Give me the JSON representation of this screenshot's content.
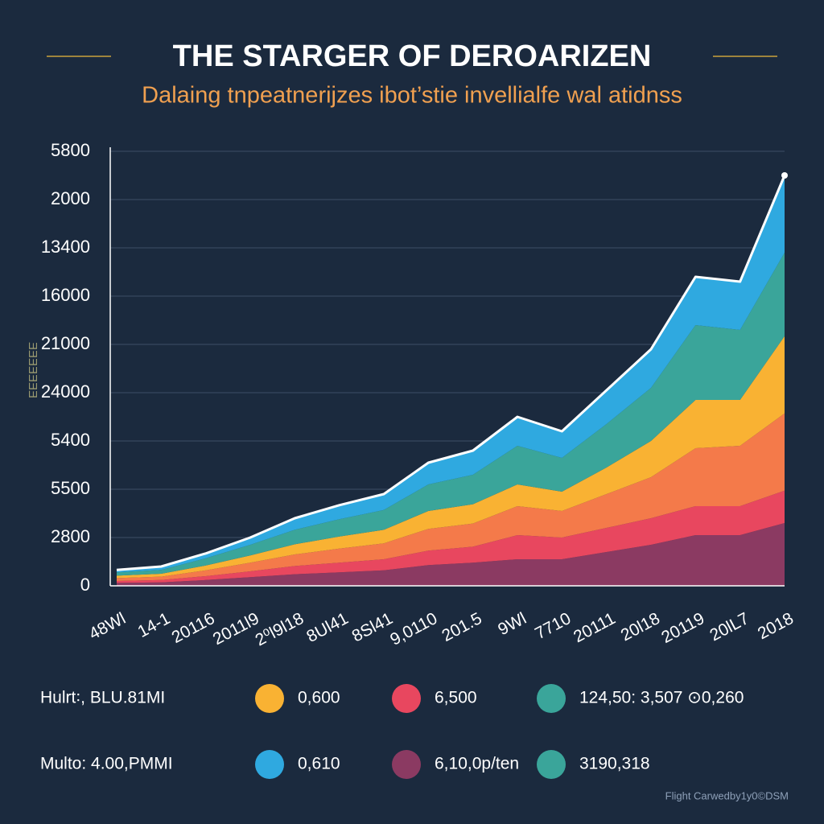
{
  "chart_data": {
    "type": "stacked_area",
    "title": "THE STARGER OF DEROARIZEN",
    "subtitle": "Dalaing tnpeatnerijzes ibot’stie invellialfe wal atidnss",
    "y_label": "ƎƎƎƎƎƎƎ",
    "categories": [
      "48Wl",
      "14-1",
      "20116",
      "2011l9",
      "2⁰l9l18",
      "8Ul41",
      "8Sl41",
      "9,0110",
      "201.5",
      "9Wl",
      "7710",
      "20111",
      "20l18",
      "20119",
      "20lL7",
      "2018"
    ],
    "series": [
      {
        "color": "#8b3a62",
        "values": [
          0.06,
          0.07,
          0.12,
          0.18,
          0.24,
          0.28,
          0.32,
          0.43,
          0.48,
          0.55,
          0.55,
          0.7,
          0.85,
          1.05,
          1.05,
          1.3
        ]
      },
      {
        "color": "#e8475f",
        "values": [
          0.04,
          0.05,
          0.08,
          0.12,
          0.17,
          0.2,
          0.23,
          0.3,
          0.33,
          0.5,
          0.45,
          0.5,
          0.55,
          0.6,
          0.6,
          0.67
        ]
      },
      {
        "color": "#f47a4a",
        "values": [
          0.06,
          0.07,
          0.12,
          0.18,
          0.24,
          0.29,
          0.33,
          0.45,
          0.48,
          0.6,
          0.55,
          0.7,
          0.85,
          1.2,
          1.25,
          1.6
        ]
      },
      {
        "color": "#f9b233",
        "values": [
          0.05,
          0.06,
          0.1,
          0.15,
          0.21,
          0.25,
          0.28,
          0.37,
          0.4,
          0.45,
          0.4,
          0.55,
          0.75,
          1.0,
          0.95,
          1.6
        ]
      },
      {
        "color": "#3aa59a",
        "values": [
          0.07,
          0.08,
          0.15,
          0.22,
          0.3,
          0.36,
          0.41,
          0.55,
          0.61,
          0.8,
          0.7,
          0.9,
          1.1,
          1.55,
          1.45,
          1.73
        ]
      },
      {
        "color": "#2fa9e0",
        "values": [
          0.05,
          0.07,
          0.1,
          0.15,
          0.24,
          0.29,
          0.33,
          0.45,
          0.5,
          0.6,
          0.55,
          0.7,
          0.8,
          1.0,
          1.0,
          1.6
        ]
      }
    ],
    "ylim": [
      0,
      9
    ],
    "yticks": [
      0,
      1,
      2,
      3,
      4,
      5,
      6,
      7,
      8,
      9
    ],
    "ytick_labels": [
      "0",
      "2800",
      "5500",
      "5400",
      "24000",
      "21000",
      "16000",
      "13400",
      "2000",
      "5800"
    ],
    "grid": true,
    "legend_rows": [
      {
        "label": "Hulrt꞉, BLU.81MI",
        "entries": [
          {
            "color": "#f9b233",
            "label": "0,600"
          },
          {
            "color": "#e8475f",
            "label": "6,500"
          },
          {
            "color": "#3aa59a",
            "label": "124,50: 3,507 ⊙0,260"
          }
        ]
      },
      {
        "label": "Multo: 4.00,PMMI",
        "entries": [
          {
            "color": "#2fa9e0",
            "label": "0,610"
          },
          {
            "color": "#8b3a62",
            "label": "6,10,0p/ten"
          },
          {
            "color": "#3aa59a",
            "label": "3190,318"
          }
        ]
      }
    ],
    "footer": "Flight Carwedby1y0©DSM"
  }
}
